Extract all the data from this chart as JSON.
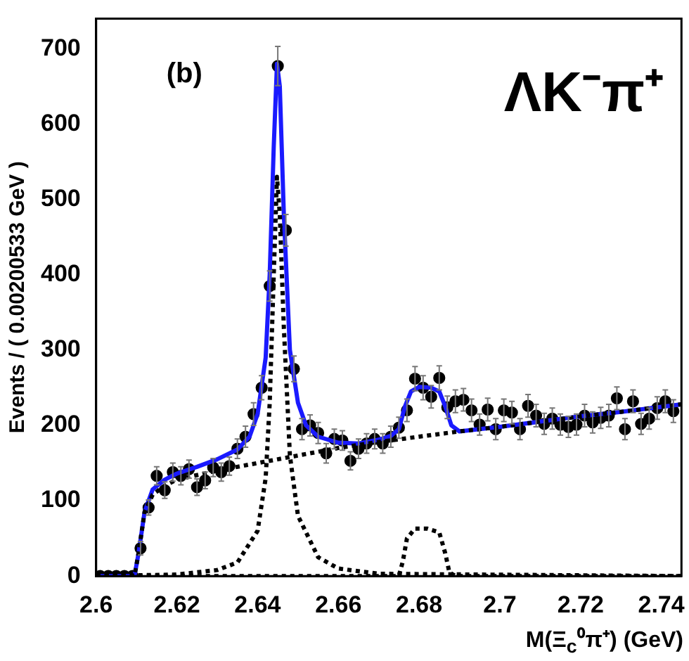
{
  "chart_data": {
    "type": "scatter",
    "xlabel": "M(Ξ$_{c}$⁰π⁺) (GeV)",
    "ylabel": "Events / ( 0.00200533 GeV )",
    "annotations": [
      "(b)",
      "ΛK⁻π⁺"
    ],
    "xlim": [
      2.6,
      2.745
    ],
    "xticks": [
      2.6,
      2.62,
      2.64,
      2.66,
      2.68,
      2.7,
      2.72,
      2.74
    ],
    "ylim": [
      0,
      740
    ],
    "yticks": [
      0,
      100,
      200,
      300,
      400,
      500,
      600,
      700
    ],
    "grid": false,
    "legend": false,
    "series": [
      {
        "type": "line",
        "color": "#000000",
        "line_style": "dotted",
        "x": [
          2.6,
          2.6095,
          2.6105,
          2.612,
          2.614,
          2.617,
          2.62,
          2.63,
          2.64,
          2.65,
          2.66,
          2.67,
          2.68,
          2.69,
          2.7,
          2.71,
          2.72,
          2.73,
          2.745
        ],
        "values": [
          0,
          0,
          30,
          85,
          108,
          120,
          128,
          140,
          150,
          160,
          170,
          178,
          185,
          192,
          198,
          205,
          212,
          218,
          228
        ]
      },
      {
        "type": "line",
        "color": "#000000",
        "line_style": "dotted",
        "x": [
          2.6,
          2.62,
          2.63,
          2.635,
          2.64,
          2.642,
          2.643,
          2.644,
          2.6448,
          2.6455,
          2.6465,
          2.648,
          2.65,
          2.655,
          2.66,
          2.67,
          2.745
        ],
        "values": [
          0,
          2,
          8,
          18,
          60,
          130,
          230,
          400,
          530,
          480,
          330,
          160,
          80,
          25,
          10,
          3,
          0
        ]
      },
      {
        "type": "line",
        "color": "#000000",
        "line_style": "dotted",
        "x": [
          2.6,
          2.675,
          2.676,
          2.677,
          2.679,
          2.682,
          2.685,
          2.6865,
          2.6875,
          2.689,
          2.745
        ],
        "values": [
          0,
          0,
          20,
          50,
          63,
          63,
          58,
          30,
          5,
          0,
          0
        ]
      },
      {
        "type": "line",
        "color": "#1a1aff",
        "line_style": "solid",
        "x": [
          2.6,
          2.6095,
          2.6105,
          2.612,
          2.614,
          2.617,
          2.62,
          2.625,
          2.63,
          2.635,
          2.638,
          2.64,
          2.642,
          2.643,
          2.644,
          2.6448,
          2.6455,
          2.6465,
          2.648,
          2.65,
          2.652,
          2.655,
          2.66,
          2.665,
          2.67,
          2.673,
          2.675,
          2.6765,
          2.678,
          2.68,
          2.683,
          2.685,
          2.6865,
          2.688,
          2.69,
          2.695,
          2.7,
          2.71,
          2.72,
          2.73,
          2.745
        ],
        "values": [
          0,
          0,
          30,
          85,
          115,
          128,
          136,
          145,
          155,
          168,
          185,
          215,
          290,
          400,
          570,
          680,
          650,
          480,
          300,
          230,
          200,
          185,
          177,
          176,
          181,
          186,
          195,
          225,
          245,
          251,
          250,
          245,
          225,
          200,
          192,
          195,
          198,
          205,
          212,
          218,
          228
        ]
      },
      {
        "color": "#000000",
        "marker": "circle",
        "x": [
          2.601,
          2.603,
          2.605,
          2.607,
          2.609,
          2.611,
          2.613,
          2.615,
          2.617,
          2.619,
          2.621,
          2.623,
          2.625,
          2.627,
          2.629,
          2.631,
          2.633,
          2.635,
          2.637,
          2.639,
          2.641,
          2.643,
          2.645,
          2.647,
          2.649,
          2.651,
          2.653,
          2.655,
          2.657,
          2.659,
          2.661,
          2.663,
          2.665,
          2.667,
          2.669,
          2.671,
          2.673,
          2.675,
          2.677,
          2.679,
          2.681,
          2.683,
          2.685,
          2.687,
          2.689,
          2.691,
          2.693,
          2.695,
          2.697,
          2.699,
          2.701,
          2.703,
          2.705,
          2.707,
          2.709,
          2.711,
          2.713,
          2.715,
          2.717,
          2.719,
          2.721,
          2.723,
          2.725,
          2.727,
          2.729,
          2.731,
          2.733,
          2.735,
          2.737,
          2.739,
          2.741,
          2.743
        ],
        "values": [
          0,
          0,
          0,
          0,
          0,
          37,
          91,
          133,
          114,
          138,
          133,
          142,
          118,
          127,
          144,
          138,
          146,
          169,
          185,
          215,
          250,
          385,
          677,
          459,
          275,
          195,
          200,
          190,
          163,
          182,
          180,
          153,
          169,
          176,
          182,
          176,
          185,
          197,
          220,
          262,
          250,
          238,
          263,
          224,
          232,
          234,
          220,
          201,
          221,
          195,
          220,
          217,
          195,
          226,
          213,
          202,
          209,
          201,
          198,
          201,
          213,
          204,
          210,
          213,
          236,
          195,
          232,
          202,
          209,
          223,
          232,
          219
        ],
        "errors": [
          null,
          null,
          null,
          null,
          null,
          9,
          10,
          12,
          11,
          12,
          12,
          12,
          11,
          11,
          12,
          12,
          12,
          13,
          14,
          15,
          16,
          20,
          26,
          21,
          17,
          14,
          14,
          14,
          13,
          13,
          13,
          12,
          13,
          13,
          13,
          13,
          14,
          14,
          15,
          16,
          16,
          15,
          16,
          15,
          15,
          15,
          15,
          14,
          15,
          14,
          15,
          15,
          14,
          15,
          15,
          14,
          14,
          14,
          14,
          14,
          15,
          14,
          14,
          15,
          15,
          14,
          15,
          14,
          14,
          15,
          15,
          15
        ]
      }
    ]
  }
}
